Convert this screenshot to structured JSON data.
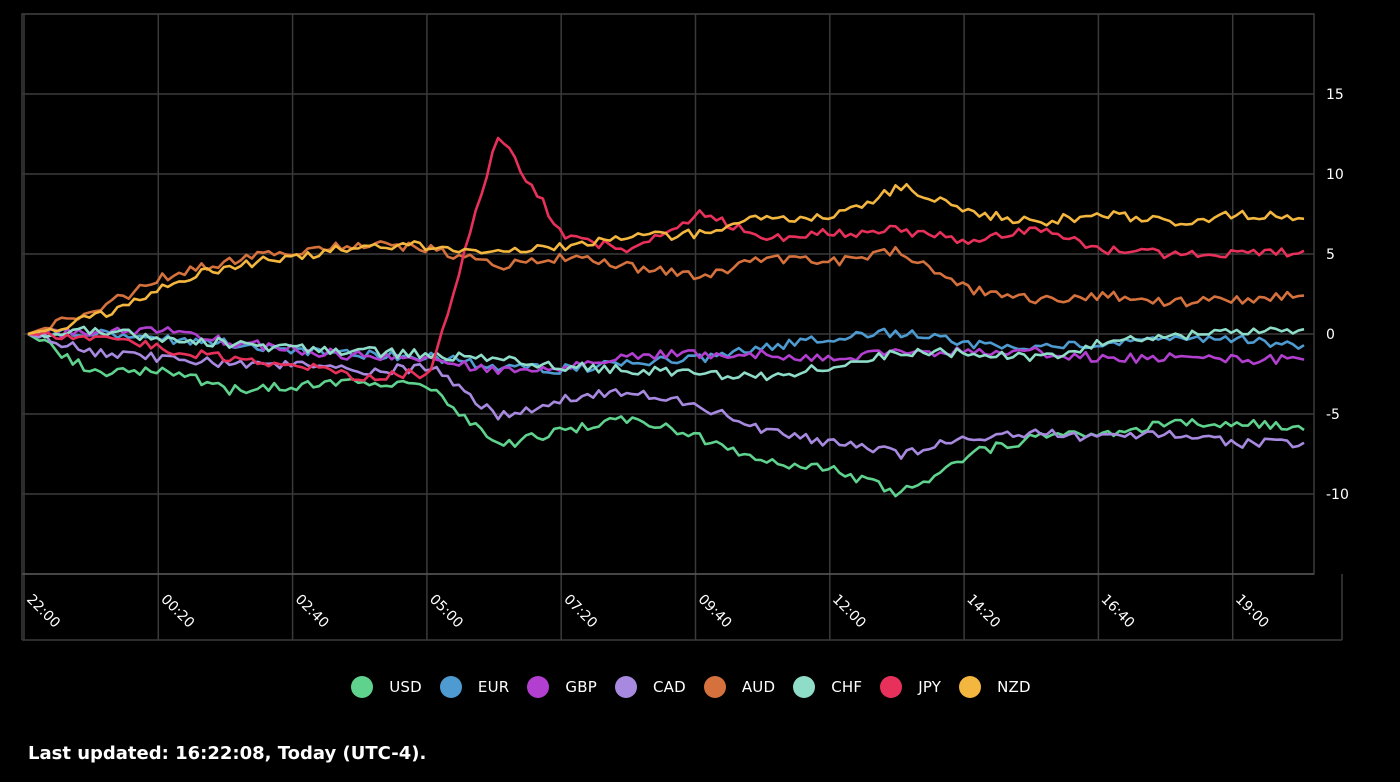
{
  "footer": {
    "last_updated": "Last updated: 16:22:08, Today (UTC-4)."
  },
  "chart_data": {
    "type": "line",
    "x_ticks": [
      "22:00",
      "00:20",
      "02:40",
      "05:00",
      "07:20",
      "09:40",
      "12:00",
      "14:20",
      "16:40",
      "19:00"
    ],
    "y_ticks": [
      15,
      10,
      5,
      0,
      -5,
      -10
    ],
    "ylim": [
      -15,
      20
    ],
    "grid": true,
    "legend_position": "bottom",
    "x": [
      0,
      0.5,
      1,
      1.5,
      2,
      2.5,
      3,
      3.5,
      4,
      4.5,
      5,
      5.5,
      6,
      6.5,
      7,
      7.5,
      8,
      8.5,
      9,
      9.5
    ],
    "series": [
      {
        "name": "USD",
        "color": "#5fd38d",
        "values": [
          0,
          -2.5,
          -2.2,
          -3.5,
          -3.2,
          -3.0,
          -3.3,
          -7.0,
          -6.0,
          -5.2,
          -6.5,
          -8.0,
          -8.5,
          -10.0,
          -7.5,
          -6.5,
          -6.2,
          -5.6,
          -5.5,
          -6.0
        ]
      },
      {
        "name": "EUR",
        "color": "#4d9bd1",
        "values": [
          0,
          0.2,
          -0.3,
          -0.6,
          -1.0,
          -1.3,
          -1.4,
          -2.1,
          -2.2,
          -1.8,
          -1.5,
          -0.8,
          -0.2,
          0.1,
          -0.6,
          -0.9,
          -0.5,
          -0.1,
          -0.3,
          -0.7
        ]
      },
      {
        "name": "GBP",
        "color": "#b23fd0",
        "values": [
          0,
          0.1,
          0.2,
          -0.5,
          -1.0,
          -1.4,
          -1.6,
          -2.4,
          -2.2,
          -1.3,
          -1.2,
          -1.3,
          -1.5,
          -1.2,
          -1.0,
          -1.1,
          -1.5,
          -1.5,
          -1.6,
          -1.6
        ]
      },
      {
        "name": "CAD",
        "color": "#a889e0",
        "values": [
          0,
          -1.2,
          -1.5,
          -1.8,
          -2.0,
          -2.3,
          -2.1,
          -5.2,
          -4.0,
          -3.6,
          -4.5,
          -6.0,
          -6.8,
          -7.5,
          -6.5,
          -6.2,
          -6.5,
          -6.2,
          -6.8,
          -6.8
        ]
      },
      {
        "name": "AUD",
        "color": "#d5713c",
        "values": [
          0,
          1.5,
          3.5,
          4.6,
          5.2,
          5.6,
          5.3,
          4.2,
          4.8,
          4.2,
          3.5,
          4.8,
          4.5,
          5.2,
          2.8,
          2.2,
          2.4,
          2.0,
          2.1,
          2.4
        ]
      },
      {
        "name": "CHF",
        "color": "#8fdcc9",
        "values": [
          0,
          0.2,
          -0.2,
          -0.6,
          -0.9,
          -1.1,
          -1.3,
          -1.6,
          -2.0,
          -2.2,
          -2.5,
          -2.6,
          -2.0,
          -1.2,
          -1.2,
          -1.5,
          -0.6,
          -0.2,
          0.2,
          0.3
        ]
      },
      {
        "name": "JPY",
        "color": "#e8315a",
        "values": [
          0,
          -0.2,
          -0.9,
          -1.5,
          -2.0,
          -2.7,
          -2.4,
          12.5,
          6.0,
          5.2,
          7.5,
          6.0,
          6.3,
          6.5,
          5.8,
          6.7,
          5.3,
          5.0,
          5.0,
          5.2
        ]
      },
      {
        "name": "NZD",
        "color": "#f3b63f",
        "values": [
          0,
          1.0,
          3.0,
          4.3,
          4.8,
          5.6,
          5.5,
          5.2,
          5.5,
          6.0,
          6.3,
          7.3,
          7.3,
          9.2,
          7.6,
          7.0,
          7.5,
          7.0,
          7.5,
          7.2
        ]
      }
    ]
  }
}
